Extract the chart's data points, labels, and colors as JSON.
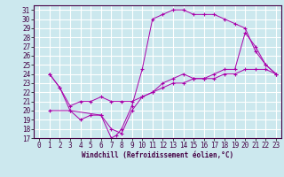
{
  "xlabel": "Windchill (Refroidissement éolien,°C)",
  "background_color": "#cce8ee",
  "grid_color": "#ffffff",
  "line_color": "#aa00aa",
  "xlim": [
    -0.5,
    23.5
  ],
  "ylim": [
    17,
    31.5
  ],
  "xticks": [
    0,
    1,
    2,
    3,
    4,
    5,
    6,
    7,
    8,
    9,
    10,
    11,
    12,
    13,
    14,
    15,
    16,
    17,
    18,
    19,
    20,
    21,
    22,
    23
  ],
  "yticks": [
    17,
    18,
    19,
    20,
    21,
    22,
    23,
    24,
    25,
    26,
    27,
    28,
    29,
    30,
    31
  ],
  "line1": {
    "x": [
      1,
      2,
      3,
      6,
      7,
      7.5,
      8,
      9,
      10,
      11,
      12,
      13,
      14,
      15,
      16,
      17,
      18,
      19,
      20,
      21,
      22,
      23
    ],
    "y": [
      24,
      22.5,
      20,
      19.5,
      17.0,
      17.3,
      18.0,
      20.5,
      24.5,
      30.0,
      30.5,
      31.0,
      31.0,
      30.5,
      30.5,
      30.5,
      30.0,
      29.5,
      29.0,
      26.5,
      25.0,
      24.0
    ]
  },
  "line2": {
    "x": [
      1,
      2,
      3,
      4,
      5,
      6,
      7,
      8,
      9,
      10,
      11,
      12,
      13,
      14,
      15,
      16,
      17,
      18,
      19,
      20,
      21,
      22,
      23
    ],
    "y": [
      24.0,
      22.5,
      20.5,
      21.0,
      21.0,
      21.5,
      21.0,
      21.0,
      21.0,
      21.5,
      22.0,
      22.5,
      23.0,
      23.0,
      23.5,
      23.5,
      23.5,
      24.0,
      24.0,
      24.5,
      24.5,
      24.5,
      24.0
    ]
  },
  "line3": {
    "x": [
      1,
      3,
      4,
      5,
      6,
      7,
      8,
      9,
      10,
      11,
      12,
      13,
      14,
      15,
      16,
      17,
      18,
      19,
      20,
      21,
      22,
      23
    ],
    "y": [
      20.0,
      20.0,
      19.0,
      19.5,
      19.5,
      18.0,
      17.5,
      20.0,
      21.5,
      22.0,
      23.0,
      23.5,
      24.0,
      23.5,
      23.5,
      24.0,
      24.5,
      24.5,
      28.5,
      27.0,
      25.0,
      24.0
    ]
  },
  "tick_fontsize": 5.5,
  "xlabel_fontsize": 5.5,
  "tick_color": "#440044",
  "spine_color": "#440044"
}
